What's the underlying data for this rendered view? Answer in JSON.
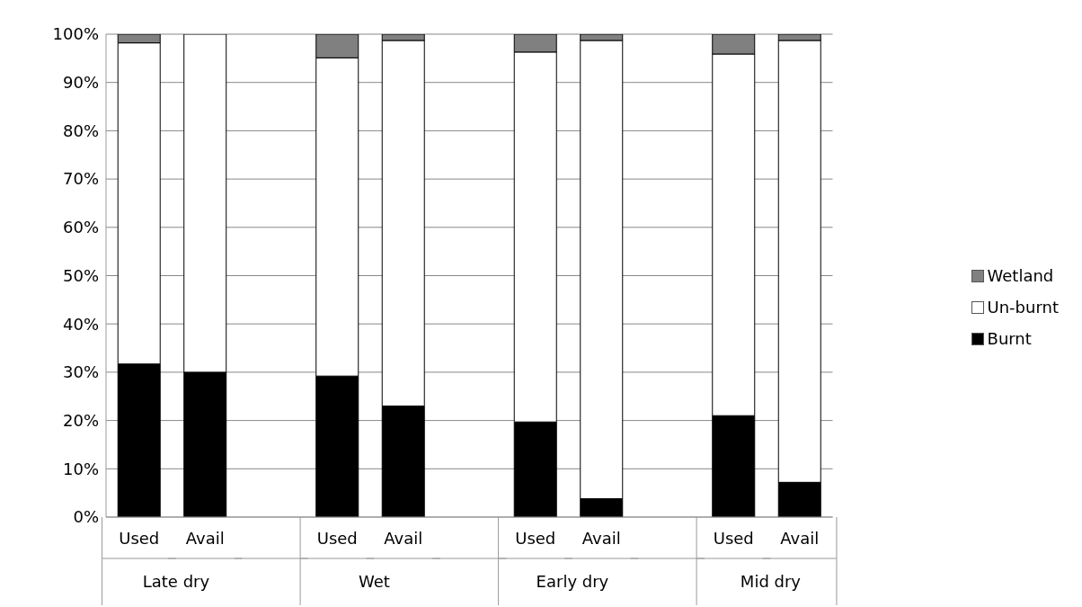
{
  "chart_data": {
    "type": "bar",
    "stacked": true,
    "categories": [
      "Used",
      "Avail",
      null,
      "Used",
      "Avail",
      null,
      "Used",
      "Avail",
      null,
      "Used",
      "Avail"
    ],
    "series": [
      {
        "name": "Burnt",
        "color": "#000000",
        "values": [
          31.7,
          30,
          null,
          29.2,
          23,
          null,
          19.7,
          3.8,
          null,
          21,
          7.2
        ]
      },
      {
        "name": "Un-burnt",
        "color": "#ffffff",
        "values": [
          66.5,
          70,
          null,
          65.9,
          75.7,
          null,
          76.6,
          94.9,
          null,
          74.9,
          91.5
        ]
      },
      {
        "name": "Wetland",
        "color": "#808080",
        "values": [
          1.8,
          0,
          null,
          4.9,
          1.3,
          null,
          3.7,
          1.3,
          null,
          4.1,
          1.3
        ]
      }
    ],
    "annotations": [
      "Late dry",
      "Wet",
      "Early dry",
      "Mid dry"
    ],
    "ylim": [
      0,
      100
    ],
    "yticks": [
      {
        "value": 0,
        "label": "0%"
      },
      {
        "value": 10,
        "label": "10%"
      },
      {
        "value": 20,
        "label": "20%"
      },
      {
        "value": 30,
        "label": "30%"
      },
      {
        "value": 40,
        "label": "40%"
      },
      {
        "value": 50,
        "label": "50%"
      },
      {
        "value": 60,
        "label": "60%"
      },
      {
        "value": 70,
        "label": "70%"
      },
      {
        "value": 80,
        "label": "80%"
      },
      {
        "value": 90,
        "label": "90%"
      },
      {
        "value": 100,
        "label": "100%"
      }
    ],
    "grid": "y",
    "legend": "right"
  }
}
